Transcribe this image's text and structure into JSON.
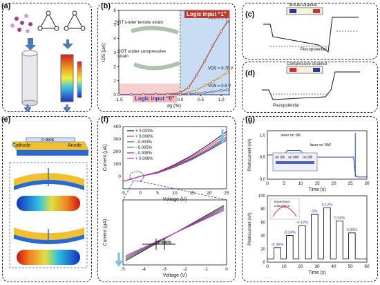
{
  "panels": {
    "a": {
      "label": "(a)"
    },
    "b": {
      "label": "(b)",
      "logic1": "Logic input “1”",
      "logic0": "Logic input “0”",
      "tensile": "SGT under tensile strain",
      "compressive": "SGT under compressive strain",
      "s": "S",
      "d": "D"
    },
    "c": {
      "label": "(c)",
      "title": "Tensile strained",
      "phi": "Φ",
      "ef": "E",
      "piezo": "Piezopotential"
    },
    "d": {
      "label": "(d)",
      "title": "Compressive strained",
      "piezo": "Piezopotential"
    },
    "e": {
      "label": "(e)",
      "cathode": "Cathode",
      "caxis": "c-axis",
      "anode": "Anode"
    },
    "f": {
      "label": "(f)",
      "inset_caxis": "+c-axis"
    },
    "g": {
      "label": "(g)",
      "laser_sb": "laser on SB",
      "laser_nw": "laser on NW",
      "on_sb1": "on SB",
      "on_nw": "on NW",
      "on_sb2": "on SB"
    }
  },
  "chart_data": [
    {
      "type": "line",
      "title": "",
      "xlabel": "εg (%)",
      "ylabel": "IDS (μA)",
      "xlim": [
        -1.5,
        1.2
      ],
      "ylim": [
        0,
        6
      ],
      "xticks": [
        "-1.5",
        "-1.0",
        "-0.5",
        "0.0",
        "0.5",
        "1.0"
      ],
      "yticks": [
        "0",
        "1",
        "2",
        "3",
        "4",
        "5",
        "6"
      ],
      "series": [
        {
          "name": "VDS = 1 V",
          "color": "#b04030",
          "x": [
            -1.5,
            -1.2,
            -0.9,
            -0.6,
            -0.3,
            0.0,
            0.2,
            0.4,
            0.6,
            0.8,
            1.0,
            1.15
          ],
          "y": [
            0.02,
            0.02,
            0.03,
            0.04,
            0.05,
            0.15,
            0.5,
            1.4,
            2.4,
            3.5,
            4.5,
            5.2
          ]
        },
        {
          "name": "VDS = 0.75 V",
          "color": "#c88a30",
          "x": [
            -1.5,
            -1.2,
            -0.9,
            -0.6,
            -0.3,
            0.0,
            0.2,
            0.4,
            0.6,
            0.8,
            1.0,
            1.15
          ],
          "y": [
            0.01,
            0.01,
            0.02,
            0.02,
            0.03,
            0.05,
            0.15,
            0.35,
            0.65,
            0.95,
            1.3,
            1.6
          ]
        },
        {
          "name": "VDS = 0.5 V",
          "color": "#6060c0",
          "x": [
            -1.5,
            -1.2,
            -0.9,
            -0.6,
            -0.3,
            0.0,
            0.2,
            0.4,
            0.6,
            0.8,
            1.0,
            1.15
          ],
          "y": [
            0.0,
            0.0,
            0.0,
            0.01,
            0.01,
            0.02,
            0.05,
            0.1,
            0.15,
            0.22,
            0.3,
            0.35
          ]
        }
      ]
    },
    {
      "type": "line",
      "title": "",
      "xlabel": "Voltage (V)",
      "ylabel": "Current (μA)",
      "xlim": [
        -5,
        25
      ],
      "ylim": [
        -100,
        400
      ],
      "xticks": [
        "-5",
        "0",
        "5",
        "10",
        "15",
        "20",
        "25"
      ],
      "yticks": [
        "0",
        "100",
        "200",
        "300",
        "400"
      ],
      "legend": [
        "+ 0.003%",
        "+ 0.000%",
        "- 0.003%",
        "- 0.005%",
        "- 0.008%",
        "+ 0.008%"
      ],
      "series": [
        {
          "name": "+ 0.003%",
          "color": "#111111",
          "x": [
            -5,
            0,
            5,
            10,
            15,
            20,
            25
          ],
          "y": [
            -40,
            0,
            35,
            95,
            170,
            260,
            360
          ]
        },
        {
          "name": "+ 0.000%",
          "color": "#d04040",
          "x": [
            -5,
            0,
            5,
            10,
            15,
            20,
            25
          ],
          "y": [
            -40,
            0,
            30,
            85,
            150,
            230,
            320
          ]
        },
        {
          "name": "- 0.003%",
          "color": "#3060c0",
          "x": [
            -5,
            0,
            5,
            10,
            15,
            20,
            25
          ],
          "y": [
            -40,
            0,
            30,
            80,
            145,
            220,
            310
          ]
        },
        {
          "name": "- 0.005%",
          "color": "#30a050",
          "x": [
            -5,
            0,
            5,
            10,
            15,
            20,
            25
          ],
          "y": [
            -40,
            0,
            28,
            78,
            140,
            215,
            300
          ]
        },
        {
          "name": "- 0.008%",
          "color": "#9030a0",
          "x": [
            -5,
            0,
            5,
            10,
            15,
            20,
            25
          ],
          "y": [
            -40,
            0,
            27,
            75,
            135,
            210,
            290
          ]
        },
        {
          "name": "+ 0.008%",
          "color": "#e020c0",
          "x": [
            -5,
            0,
            5,
            10,
            15,
            20,
            25
          ],
          "y": [
            -40,
            0,
            33,
            90,
            160,
            245,
            340
          ]
        }
      ]
    },
    {
      "type": "line",
      "title": "",
      "xlabel": "Time (s)",
      "ylabel": "Photocurrent (nA)",
      "xlim": [
        0,
        30
      ],
      "xticks": [
        "0",
        "5",
        "10",
        "15",
        "20",
        "25",
        "30"
      ],
      "yticks": [
        "0.0",
        "0.5",
        "1.0"
      ],
      "series": [
        {
          "name": "",
          "color": "#2040c0",
          "x": [
            0,
            5,
            6,
            10,
            11,
            15,
            20,
            25,
            26,
            26.5,
            27,
            29,
            30
          ],
          "y": [
            0.55,
            0.55,
            0.65,
            0.65,
            0.55,
            0.5,
            0.5,
            0.5,
            0.5,
            0.1,
            0.05,
            0.05,
            0.05
          ]
        }
      ]
    },
    {
      "type": "bar",
      "title": "",
      "xlabel": "Time (s)",
      "ylabel": "Photocurrent (nA)",
      "xlim": [
        0,
        60
      ],
      "ylim": [
        0,
        100
      ],
      "xticks": [
        "0",
        "10",
        "20",
        "30",
        "40",
        "50",
        "60"
      ],
      "yticks": [
        "0",
        "20",
        "40",
        "60",
        "80",
        "100"
      ],
      "categories": [
        "-0.36%",
        "-0.24%",
        "-0.12%",
        "0%",
        "0.12%",
        "0.24%",
        "0.36%"
      ],
      "values": [
        22,
        40,
        55,
        72,
        82,
        62,
        44
      ],
      "inset_legend": [
        "Experiment",
        "Calculation"
      ]
    }
  ]
}
